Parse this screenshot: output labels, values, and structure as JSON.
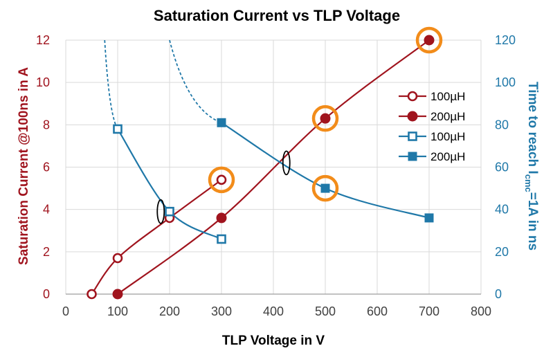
{
  "chart_data": {
    "type": "line",
    "title": "Saturation Current vs TLP Voltage",
    "xlabel": "TLP Voltage in V",
    "ylabel_left": "Saturation Current  @100ns in A",
    "ylabel_right": {
      "before": "Time to reach I",
      "subscript": "cmc",
      "after": "=1A  in ns"
    },
    "xlim": [
      0,
      800
    ],
    "ylim_left": [
      0,
      12
    ],
    "ylim_right": [
      0,
      120
    ],
    "x_ticks": [
      "0",
      "100",
      "200",
      "300",
      "400",
      "500",
      "600",
      "700",
      "800"
    ],
    "y_left_ticks": [
      "0",
      "2",
      "4",
      "6",
      "8",
      "10",
      "12"
    ],
    "y_right_ticks": [
      "0",
      "20",
      "40",
      "60",
      "80",
      "100",
      "120"
    ],
    "grid": true,
    "legend_position": "right",
    "colors": {
      "current": "#a0141e",
      "time": "#1f78a8",
      "highlight": "#f28c1a",
      "grid": "#d9d9d9"
    },
    "series": [
      {
        "name": "100µH",
        "axis": "left",
        "marker": "circle-open",
        "x": [
          50,
          100,
          200,
          300
        ],
        "y": [
          0,
          1.7,
          3.6,
          5.4
        ]
      },
      {
        "name": "200µH",
        "axis": "left",
        "marker": "circle-filled",
        "x": [
          100,
          300,
          500,
          700
        ],
        "y": [
          0,
          3.6,
          8.3,
          12
        ]
      },
      {
        "name": "100µH",
        "axis": "right",
        "marker": "square-open",
        "x": [
          100,
          200,
          300
        ],
        "y": [
          78,
          39,
          26
        ],
        "extrapolated_x": [
          75,
          100
        ],
        "extrapolated_y": [
          120,
          78
        ]
      },
      {
        "name": "200µH",
        "axis": "right",
        "marker": "square-filled",
        "x": [
          300,
          500,
          700
        ],
        "y": [
          81,
          50,
          36
        ],
        "extrapolated_x": [
          200,
          300
        ],
        "extrapolated_y": [
          120,
          81
        ]
      }
    ],
    "highlighted_points": [
      {
        "series": 0,
        "x": 300,
        "y": 5.4
      },
      {
        "series": 1,
        "x": 500,
        "y": 8.3
      },
      {
        "series": 1,
        "x": 700,
        "y": 12
      },
      {
        "series": 3,
        "x": 500,
        "y": 50
      }
    ],
    "crossing_markers": [
      {
        "x": 183,
        "y": 3.9
      },
      {
        "x": 425,
        "y": 6.2
      }
    ]
  }
}
